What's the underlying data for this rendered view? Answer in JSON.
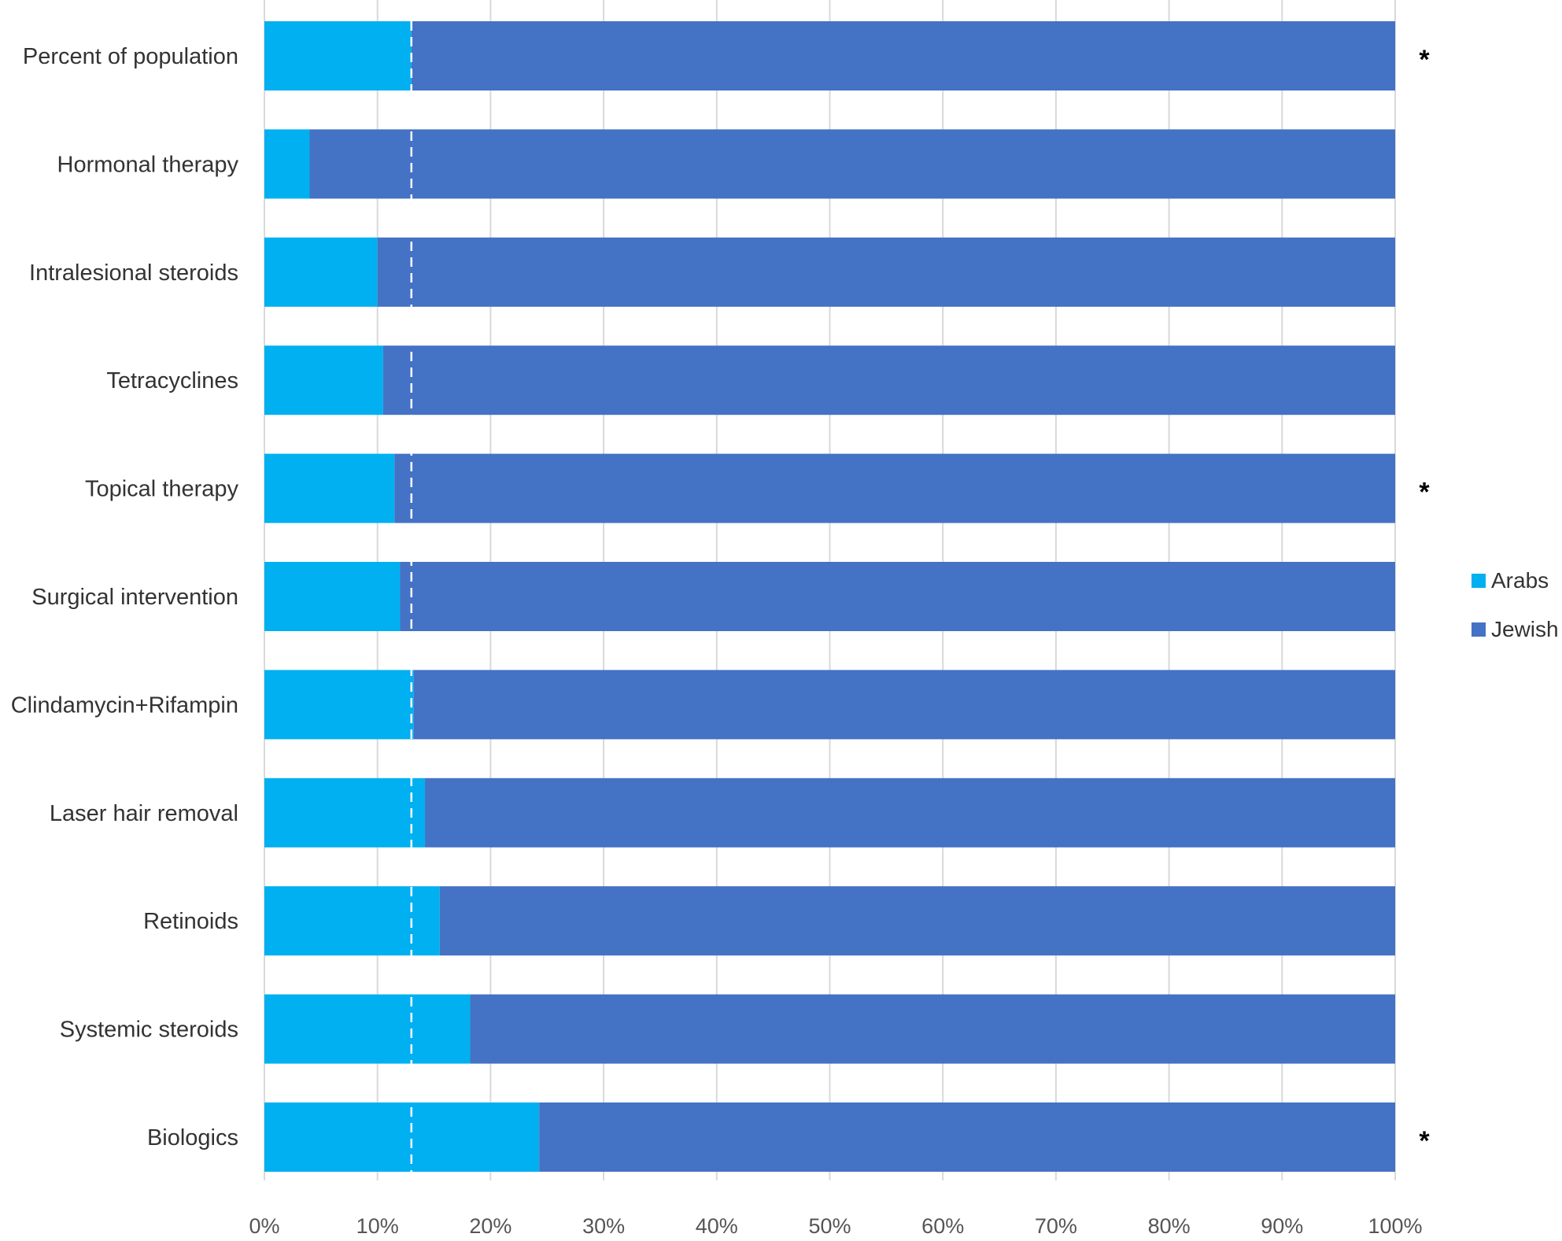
{
  "chart_data": {
    "type": "bar",
    "orientation": "horizontal",
    "stacked": "percent",
    "categories": [
      "Percent of population",
      "Hormonal therapy",
      "Intralesional steroids",
      "Tetracyclines",
      "Topical therapy",
      "Surgical intervention",
      "Clindamycin+Rifampin",
      "Laser hair removal",
      "Retinoids",
      "Systemic steroids",
      "Biologics"
    ],
    "series": [
      {
        "name": "Arabs",
        "color": "#00B0F0",
        "values": [
          13,
          4,
          10,
          10.5,
          11.5,
          12,
          13.2,
          14.2,
          15.5,
          18.2,
          24.3
        ]
      },
      {
        "name": "Jewish",
        "color": "#4472C4",
        "values": [
          87,
          96,
          90,
          89.5,
          88.5,
          88,
          86.8,
          85.8,
          84.5,
          81.8,
          75.7
        ]
      }
    ],
    "reference_line": {
      "value": 13,
      "style": "dashed",
      "color": "#ffffff"
    },
    "significance_marks": [
      "*",
      "",
      "",
      "",
      "*",
      "",
      "",
      "",
      "",
      "",
      "*"
    ],
    "x_ticks": [
      "0%",
      "10%",
      "20%",
      "30%",
      "40%",
      "50%",
      "60%",
      "70%",
      "80%",
      "90%",
      "100%"
    ],
    "xlim": [
      0,
      100
    ],
    "grid": "vertical",
    "legend": {
      "position": "right",
      "entries": [
        "Arabs",
        "Jewish"
      ]
    },
    "title": "",
    "xlabel": "",
    "ylabel": ""
  }
}
